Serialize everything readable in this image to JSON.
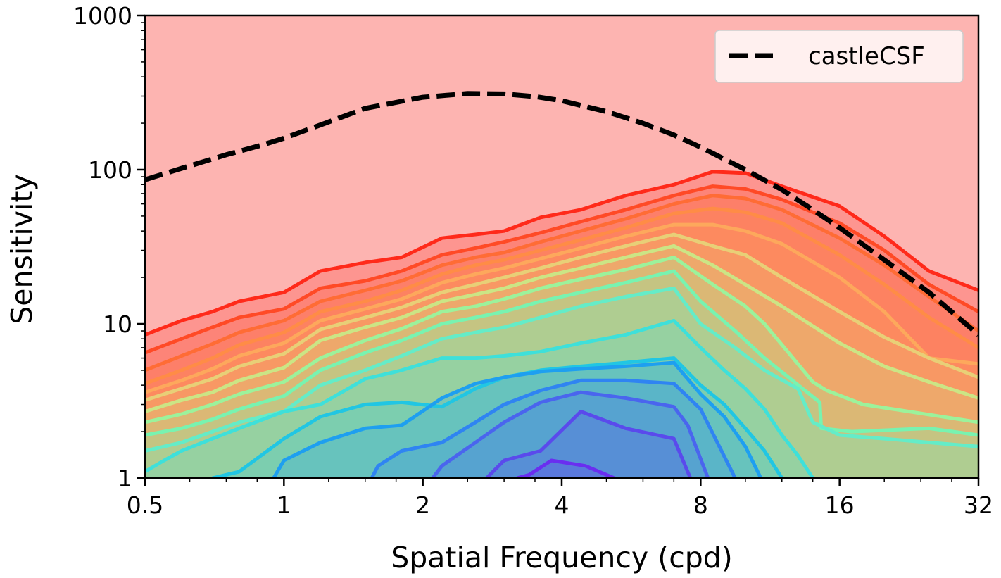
{
  "chart_data": {
    "type": "line",
    "title": "",
    "xlabel": "Spatial Frequency (cpd)",
    "ylabel": "Sensitivity",
    "xscale": "log2",
    "yscale": "log10",
    "xlim": [
      0.5,
      32
    ],
    "ylim": [
      1,
      1000
    ],
    "x_ticks": [
      0.5,
      1,
      2,
      4,
      8,
      16,
      32
    ],
    "x_tick_labels": [
      "0.5",
      "1",
      "2",
      "4",
      "8",
      "16",
      "32"
    ],
    "y_ticks": [
      1,
      10,
      100,
      1000
    ],
    "y_tick_labels": [
      "1",
      "10",
      "100",
      "1000"
    ],
    "grid": false,
    "legend": {
      "location": "top-right",
      "entries": [
        "castleCSF"
      ]
    },
    "background_region": {
      "name": "above highest contour",
      "color": "#fdb4b1"
    },
    "series": [
      {
        "name": "castleCSF",
        "style": "dashed",
        "color": "#000000",
        "x": [
          0.5,
          0.6,
          0.75,
          0.9,
          1.0,
          1.2,
          1.5,
          2.0,
          2.5,
          3.0,
          3.5,
          4.0,
          5.0,
          6.0,
          7.0,
          8.0,
          10.0,
          12.0,
          14.0,
          16.0,
          20.0,
          25.0,
          32.0
        ],
        "y": [
          86,
          102,
          125,
          145,
          160,
          195,
          250,
          295,
          312,
          310,
          298,
          280,
          238,
          200,
          168,
          140,
          100,
          74,
          55,
          42,
          26,
          16,
          8.5
        ]
      }
    ],
    "contours": [
      {
        "level": 1,
        "color": "#ff2a1a",
        "x": [
          0.5,
          0.6,
          0.7,
          0.8,
          1,
          1.2,
          1.5,
          1.8,
          2.2,
          2.6,
          3,
          3.6,
          4.4,
          5.5,
          7,
          8.5,
          10,
          12,
          16,
          20,
          25,
          32
        ],
        "y": [
          8.5,
          10.5,
          12,
          14,
          16,
          22,
          25,
          27,
          36,
          38,
          40,
          49,
          55,
          68,
          80,
          97,
          95,
          78,
          58,
          37,
          22,
          16.5
        ]
      },
      {
        "level": 2,
        "color": "#ff4a26",
        "x": [
          0.5,
          0.6,
          0.7,
          0.8,
          1,
          1.2,
          1.5,
          1.8,
          2.2,
          2.6,
          3,
          3.6,
          4.4,
          5.5,
          7,
          8.5,
          10,
          12,
          16,
          20,
          25,
          32
        ],
        "y": [
          6.5,
          8,
          9.5,
          11,
          12.5,
          17,
          19,
          22,
          28,
          31,
          34,
          39,
          46,
          55,
          68,
          78,
          75,
          64,
          45,
          30,
          18,
          12
        ]
      },
      {
        "level": 3,
        "color": "#ff6c35",
        "x": [
          0.5,
          0.6,
          0.7,
          0.8,
          1,
          1.2,
          1.5,
          1.8,
          2.2,
          2.6,
          3,
          3.6,
          4.4,
          5.5,
          7,
          8.5,
          10,
          12,
          16,
          20,
          25,
          32
        ],
        "y": [
          5,
          6.2,
          7.4,
          8.8,
          10.5,
          14,
          16.5,
          19,
          24,
          27,
          29,
          34,
          40,
          48,
          60,
          68,
          65,
          55,
          36,
          24,
          15,
          9
        ]
      },
      {
        "level": 4,
        "color": "#ff8c46",
        "x": [
          0.5,
          0.6,
          0.7,
          0.8,
          1,
          1.2,
          1.5,
          1.8,
          2.2,
          2.6,
          3,
          3.6,
          4.4,
          5.5,
          7,
          8.5,
          10,
          12,
          16,
          20,
          25,
          32
        ],
        "y": [
          4.1,
          5,
          6,
          7.3,
          8.8,
          12,
          14,
          16.5,
          21,
          24,
          26,
          30,
          35,
          42,
          52,
          56,
          53,
          45,
          28,
          18,
          11,
          7
        ]
      },
      {
        "level": 5,
        "color": "#fda85c",
        "x": [
          0.5,
          0.6,
          0.7,
          0.8,
          1,
          1.2,
          1.5,
          1.8,
          2.2,
          2.6,
          3,
          3.6,
          4.4,
          5.5,
          7,
          8.5,
          10,
          12,
          16,
          20,
          25,
          32
        ],
        "y": [
          3.6,
          4.3,
          5.1,
          6.2,
          7.5,
          10.5,
          12.5,
          14.5,
          18.5,
          21,
          23,
          26.5,
          31,
          37,
          44,
          44,
          40,
          33,
          20,
          12,
          6,
          5.5
        ]
      },
      {
        "level": 6,
        "color": "#e8cf77",
        "x": [
          0.5,
          0.6,
          0.7,
          0.8,
          1,
          1.2,
          1.5,
          1.8,
          2.2,
          2.6,
          3,
          3.6,
          4.4,
          5.5,
          7,
          8.5,
          10,
          12,
          16,
          20,
          25,
          32
        ],
        "y": [
          3.2,
          3.8,
          4.4,
          5.3,
          6.4,
          9.2,
          11,
          12.8,
          16,
          18,
          20,
          23,
          27,
          32,
          38,
          32,
          28,
          20,
          12,
          8.2,
          6,
          4.5
        ]
      },
      {
        "level": 7,
        "color": "#cbe585",
        "x": [
          0.5,
          0.6,
          0.7,
          0.8,
          1,
          1.2,
          1.5,
          1.8,
          2.2,
          2.6,
          3,
          3.6,
          4.4,
          5.5,
          7,
          8.5,
          10,
          12,
          16,
          20,
          25,
          32
        ],
        "y": [
          2.7,
          3.2,
          3.6,
          4.3,
          5.2,
          7.8,
          9.5,
          11,
          14,
          15.5,
          17,
          20,
          23,
          27,
          32,
          24,
          18,
          13,
          7.5,
          5.3,
          4.2,
          3.3
        ]
      },
      {
        "level": 8,
        "color": "#9cf29b",
        "x": [
          0.5,
          0.6,
          0.7,
          0.8,
          1,
          1.2,
          1.5,
          1.8,
          2.2,
          2.6,
          3,
          3.6,
          4.4,
          5.5,
          7,
          8.5,
          10,
          11,
          14,
          15,
          18,
          32
        ],
        "y": [
          2.3,
          2.6,
          3,
          3.5,
          4.2,
          6,
          7.8,
          9.3,
          12,
          13,
          14.5,
          17,
          19.5,
          22.5,
          27,
          18,
          13,
          10,
          4.2,
          3.7,
          3,
          2.3
        ]
      },
      {
        "level": 9,
        "color": "#78f3b0",
        "x": [
          0.5,
          0.6,
          0.7,
          0.8,
          1,
          1.2,
          1.5,
          1.8,
          2.2,
          2.6,
          3,
          3.6,
          4.4,
          5.5,
          7,
          8,
          9.5,
          11,
          14.5,
          14.6,
          17,
          25,
          32
        ],
        "y": [
          1.9,
          2.1,
          2.4,
          2.8,
          3.4,
          5,
          6.5,
          7.8,
          10,
          11,
          12,
          14,
          16,
          18.5,
          22,
          14,
          9,
          6,
          3.1,
          2.1,
          2,
          2.1,
          1.9
        ]
      },
      {
        "level": 10,
        "color": "#64ecc8",
        "x": [
          0.5,
          0.6,
          0.7,
          0.8,
          1,
          1.2,
          1.5,
          1.8,
          2.2,
          2.6,
          3,
          3.6,
          4.4,
          5.5,
          7,
          8,
          9.5,
          11,
          13,
          14,
          16,
          20,
          25,
          32
        ],
        "y": [
          1.5,
          1.7,
          2,
          2.3,
          2.7,
          4,
          5,
          6.2,
          8,
          8.8,
          9.5,
          11,
          13,
          15,
          17,
          10,
          7,
          5,
          3.8,
          2.3,
          1.9,
          1.8,
          1.7,
          1.6
        ]
      },
      {
        "level": 11,
        "color": "#3ee0da",
        "x": [
          0.5,
          0.55,
          0.6,
          0.7,
          0.8,
          1,
          1.2,
          1.5,
          1.8,
          2.2,
          2.6,
          3,
          3.6,
          4.4,
          5.5,
          7,
          8,
          9,
          10,
          11,
          12,
          13,
          14
        ],
        "y": [
          1.1,
          1.3,
          1.5,
          1.8,
          2.1,
          2.7,
          3,
          4.4,
          5,
          6,
          6,
          6.2,
          6.6,
          7.5,
          8.5,
          10.5,
          7,
          5,
          3.8,
          2.8,
          1.9,
          1.4,
          1
        ]
      },
      {
        "level": 12,
        "color": "#21c6e3",
        "x": [
          0.7,
          0.8,
          1,
          1.2,
          1.5,
          1.8,
          2.2,
          2.6,
          3,
          3.6,
          4.4,
          5.5,
          7,
          8,
          9,
          10,
          11,
          12
        ],
        "y": [
          1,
          1.1,
          1.8,
          2.5,
          3,
          3.1,
          2.9,
          3.8,
          4.5,
          5,
          5.3,
          5.6,
          6,
          4,
          3,
          2.1,
          1.5,
          1
        ]
      },
      {
        "level": 13,
        "color": "#1e9ff0",
        "x": [
          0.95,
          1,
          1.2,
          1.5,
          1.8,
          2.2,
          2.6,
          3,
          3.6,
          4.4,
          5.5,
          7,
          8,
          9,
          10,
          10.8
        ],
        "y": [
          1,
          1.3,
          1.7,
          2.1,
          2.2,
          3.3,
          4.1,
          4.5,
          4.9,
          5.1,
          5.3,
          5.6,
          3.5,
          2.5,
          1.6,
          1
        ]
      },
      {
        "level": 14,
        "color": "#2f84f2",
        "x": [
          1.55,
          1.6,
          1.8,
          2.2,
          2.6,
          3,
          3.6,
          4.4,
          5.5,
          7,
          8,
          9.5
        ],
        "y": [
          1,
          1.2,
          1.5,
          1.7,
          2.3,
          3,
          3.7,
          4.3,
          4.3,
          4.1,
          2.8,
          1
        ]
      },
      {
        "level": 15,
        "color": "#4a65ee",
        "x": [
          2.1,
          2.2,
          2.6,
          3,
          3.6,
          4.4,
          5.5,
          7,
          7.5,
          8.3
        ],
        "y": [
          1,
          1.2,
          1.7,
          2.3,
          3.1,
          3.6,
          3.3,
          2.9,
          2.2,
          1
        ]
      },
      {
        "level": 16,
        "color": "#5a4aec",
        "x": [
          2.75,
          3,
          3.6,
          4.4,
          5.5,
          7,
          7.6
        ],
        "y": [
          1,
          1.3,
          1.5,
          2.7,
          2.1,
          1.8,
          1
        ]
      },
      {
        "level": 17,
        "color": "#6a2ef0",
        "x": [
          3.2,
          3.4,
          3.8,
          4.5,
          5.2
        ],
        "y": [
          1,
          1.05,
          1.3,
          1.2,
          1
        ]
      }
    ]
  }
}
